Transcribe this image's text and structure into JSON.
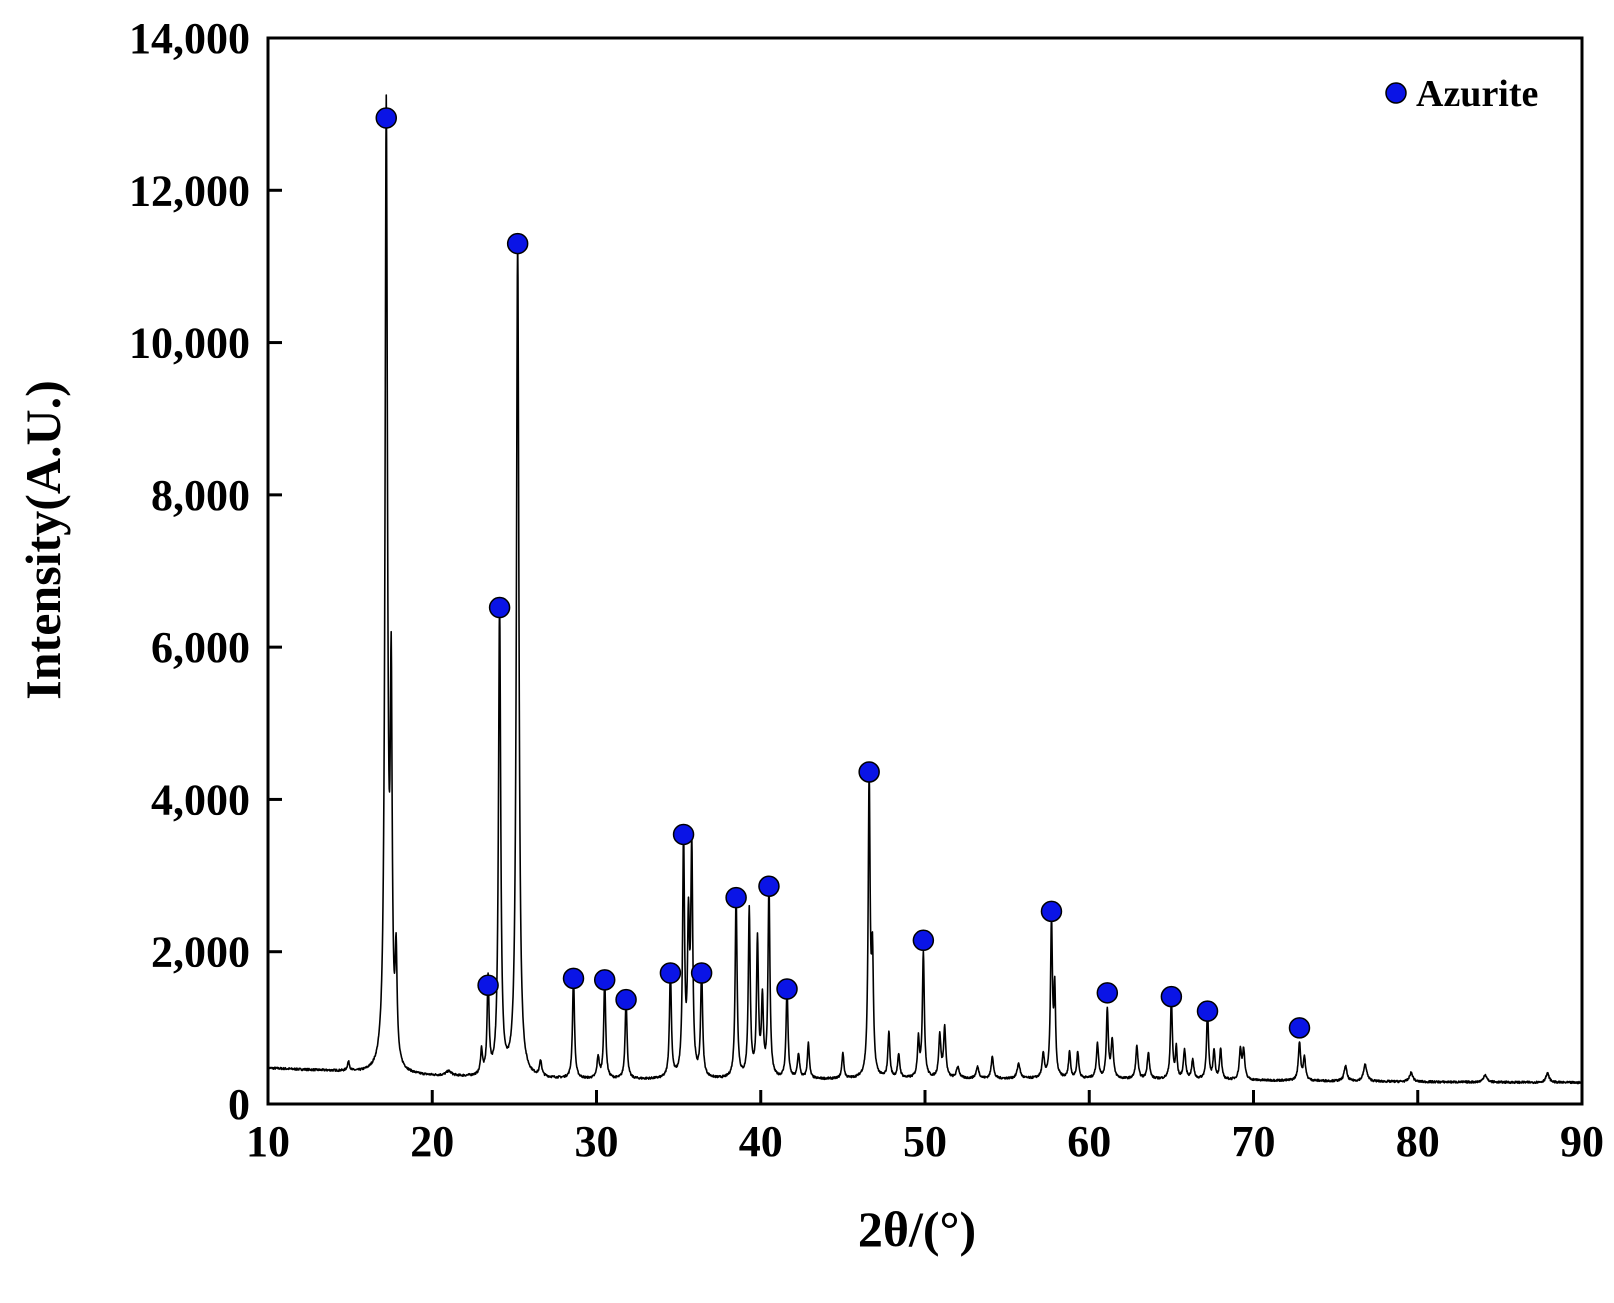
{
  "chart_data": {
    "type": "line",
    "title": "",
    "xlabel": "2θ/(°)",
    "ylabel": "Intensity(A.U.)",
    "xlim": [
      10,
      90
    ],
    "ylim": [
      0,
      14000
    ],
    "x_ticks": [
      10,
      20,
      30,
      40,
      50,
      60,
      70,
      80,
      90
    ],
    "x_tick_labels": [
      "10",
      "20",
      "30",
      "40",
      "50",
      "60",
      "70",
      "80",
      "90"
    ],
    "y_ticks": [
      0,
      2000,
      4000,
      6000,
      8000,
      10000,
      12000,
      14000
    ],
    "y_tick_labels": [
      "0",
      "2,000",
      "4,000",
      "6,000",
      "8,000",
      "10,000",
      "12,000",
      "14,000"
    ],
    "grid": false,
    "legend": {
      "position": "top-right",
      "entries": [
        {
          "label": "Azurite",
          "marker": "circle",
          "color": "#0a14e6"
        }
      ]
    },
    "colors": {
      "line": "#000000",
      "marker": "#0a14e6",
      "marker_edge": "#000000"
    },
    "series": [
      {
        "baseline": [
          [
            10,
            470
          ],
          [
            14,
            430
          ],
          [
            17,
            380
          ],
          [
            20,
            360
          ],
          [
            25,
            330
          ],
          [
            30,
            320
          ],
          [
            40,
            320
          ],
          [
            50,
            330
          ],
          [
            60,
            330
          ],
          [
            70,
            310
          ],
          [
            80,
            290
          ],
          [
            90,
            280
          ]
        ],
        "peaks": [
          [
            14.9,
            120,
            0.08
          ],
          [
            17.2,
            12600,
            0.09
          ],
          [
            17.5,
            4700,
            0.07
          ],
          [
            17.8,
            1350,
            0.07
          ],
          [
            21.0,
            60,
            0.2
          ],
          [
            23.0,
            320,
            0.07
          ],
          [
            23.4,
            1260,
            0.07
          ],
          [
            24.1,
            6200,
            0.08
          ],
          [
            25.2,
            11000,
            0.09
          ],
          [
            26.6,
            200,
            0.08
          ],
          [
            28.6,
            1350,
            0.07
          ],
          [
            30.1,
            280,
            0.08
          ],
          [
            30.5,
            1300,
            0.07
          ],
          [
            31.8,
            1050,
            0.07
          ],
          [
            34.5,
            1400,
            0.07
          ],
          [
            35.3,
            3100,
            0.07
          ],
          [
            35.6,
            1900,
            0.07
          ],
          [
            35.8,
            2950,
            0.07
          ],
          [
            36.4,
            1400,
            0.07
          ],
          [
            38.5,
            2400,
            0.07
          ],
          [
            39.3,
            2200,
            0.07
          ],
          [
            39.8,
            1800,
            0.07
          ],
          [
            40.1,
            1000,
            0.07
          ],
          [
            40.5,
            2500,
            0.07
          ],
          [
            41.6,
            1180,
            0.07
          ],
          [
            42.3,
            320,
            0.08
          ],
          [
            42.9,
            470,
            0.07
          ],
          [
            45.0,
            340,
            0.07
          ],
          [
            46.6,
            3900,
            0.07
          ],
          [
            46.8,
            1500,
            0.07
          ],
          [
            47.8,
            600,
            0.07
          ],
          [
            48.4,
            300,
            0.08
          ],
          [
            49.6,
            500,
            0.07
          ],
          [
            49.9,
            1650,
            0.07
          ],
          [
            50.9,
            550,
            0.08
          ],
          [
            51.2,
            650,
            0.08
          ],
          [
            52.0,
            150,
            0.1
          ],
          [
            53.2,
            150,
            0.1
          ],
          [
            54.1,
            300,
            0.08
          ],
          [
            55.7,
            200,
            0.1
          ],
          [
            57.2,
            300,
            0.08
          ],
          [
            57.7,
            2050,
            0.07
          ],
          [
            57.9,
            1100,
            0.06
          ],
          [
            58.8,
            350,
            0.07
          ],
          [
            59.3,
            350,
            0.07
          ],
          [
            60.5,
            450,
            0.08
          ],
          [
            61.1,
            900,
            0.07
          ],
          [
            61.4,
            500,
            0.08
          ],
          [
            62.9,
            430,
            0.08
          ],
          [
            63.6,
            350,
            0.08
          ],
          [
            65.0,
            1050,
            0.07
          ],
          [
            65.3,
            400,
            0.06
          ],
          [
            65.8,
            380,
            0.08
          ],
          [
            66.3,
            250,
            0.08
          ],
          [
            67.2,
            900,
            0.07
          ],
          [
            67.6,
            380,
            0.07
          ],
          [
            68.0,
            400,
            0.07
          ],
          [
            69.2,
            380,
            0.08
          ],
          [
            69.4,
            380,
            0.08
          ],
          [
            72.8,
            500,
            0.08
          ],
          [
            73.1,
            300,
            0.08
          ],
          [
            75.6,
            200,
            0.1
          ],
          [
            76.8,
            220,
            0.12
          ],
          [
            79.6,
            120,
            0.12
          ],
          [
            84.1,
            100,
            0.12
          ],
          [
            87.9,
            120,
            0.12
          ]
        ],
        "color": "#000000"
      }
    ],
    "markers": [
      {
        "x": 17.2,
        "y": 12950
      },
      {
        "x": 23.4,
        "y": 1560
      },
      {
        "x": 24.1,
        "y": 6520
      },
      {
        "x": 25.2,
        "y": 11300
      },
      {
        "x": 28.6,
        "y": 1650
      },
      {
        "x": 30.5,
        "y": 1630
      },
      {
        "x": 31.8,
        "y": 1370
      },
      {
        "x": 34.5,
        "y": 1720
      },
      {
        "x": 35.3,
        "y": 3540
      },
      {
        "x": 36.4,
        "y": 1720
      },
      {
        "x": 38.5,
        "y": 2710
      },
      {
        "x": 40.5,
        "y": 2860
      },
      {
        "x": 41.6,
        "y": 1510
      },
      {
        "x": 46.6,
        "y": 4360
      },
      {
        "x": 49.9,
        "y": 2150
      },
      {
        "x": 57.7,
        "y": 2530
      },
      {
        "x": 61.1,
        "y": 1460
      },
      {
        "x": 65.0,
        "y": 1410
      },
      {
        "x": 67.2,
        "y": 1220
      },
      {
        "x": 72.8,
        "y": 1000
      }
    ]
  }
}
